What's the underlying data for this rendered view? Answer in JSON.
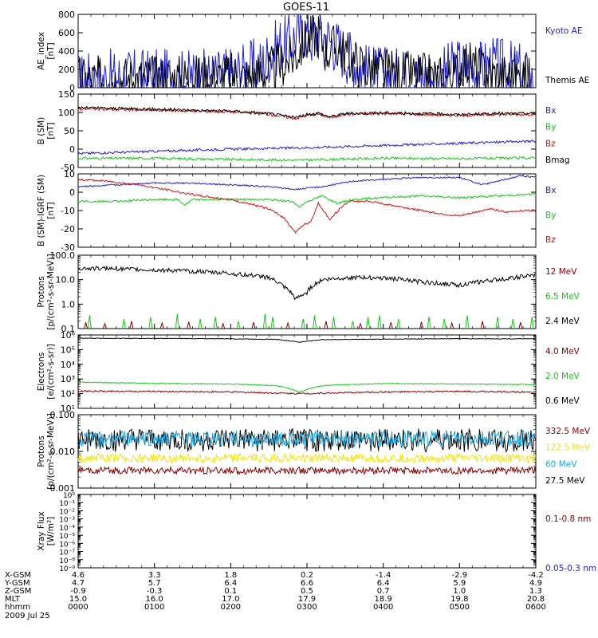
{
  "title": "GOES-11",
  "colors": {
    "black": "#000000",
    "blue": "#1f1fe0",
    "red": "#dd1111",
    "green": "#11cc11",
    "darkred": "#8a0000",
    "yellow": "#f2e600",
    "cyan": "#1aa7e0"
  },
  "chart_data": [
    {
      "type": "line",
      "panel": "ae",
      "ylabel": "AE_index [nT]",
      "yscale": "linear",
      "ylim": [
        0,
        800
      ],
      "yticks": [
        "0",
        "200",
        "400",
        "600",
        "800"
      ],
      "legend": [
        {
          "text": "Kyoto AE",
          "color": "blue"
        },
        {
          "text": "Themis AE",
          "color": "black"
        }
      ],
      "series": [
        {
          "name": "Kyoto AE",
          "color": "blue",
          "noise": 12,
          "x": [
            0,
            0.1,
            0.3,
            0.6,
            0.9,
            1.2,
            1.4,
            1.6,
            1.8,
            2.0,
            2.2,
            2.4,
            2.55,
            2.65,
            2.75,
            2.85,
            2.95,
            3.05,
            3.1,
            3.2,
            3.3,
            3.5,
            3.8,
            4.2,
            4.5,
            4.7,
            4.85,
            5.0,
            5.2,
            5.4,
            5.6,
            5.8,
            5.95,
            6.0
          ],
          "y": [
            70,
            90,
            110,
            110,
            120,
            110,
            110,
            120,
            120,
            150,
            200,
            250,
            400,
            480,
            480,
            560,
            620,
            540,
            560,
            600,
            520,
            380,
            160,
            130,
            110,
            120,
            180,
            250,
            180,
            250,
            220,
            180,
            60,
            40
          ]
        },
        {
          "name": "Themis AE",
          "color": "black",
          "noise": 10,
          "x": [
            0,
            0.3,
            0.6,
            0.9,
            1.2,
            1.5,
            1.8,
            2.0,
            2.2,
            2.4,
            2.6,
            2.75,
            2.85,
            2.95,
            3.05,
            3.15,
            3.25,
            3.4,
            3.6,
            3.8,
            4.2,
            4.5,
            4.8,
            4.95,
            5.05,
            5.2,
            5.4,
            5.6,
            5.8,
            6.0
          ],
          "y": [
            80,
            90,
            100,
            100,
            100,
            110,
            100,
            130,
            110,
            140,
            220,
            300,
            350,
            500,
            550,
            600,
            400,
            450,
            300,
            200,
            150,
            120,
            100,
            150,
            280,
            230,
            150,
            130,
            110,
            90
          ]
        }
      ]
    },
    {
      "type": "line",
      "panel": "b",
      "ylabel": "B (SM) [nT]",
      "yscale": "linear",
      "ylim": [
        -50,
        150
      ],
      "yticks": [
        "-50",
        "0",
        "50",
        "100",
        "150"
      ],
      "legend": [
        {
          "text": "Bx",
          "color": "blue"
        },
        {
          "text": "By",
          "color": "green"
        },
        {
          "text": "Bz",
          "color": "red"
        },
        {
          "text": "Bmag",
          "color": "black"
        }
      ],
      "series": [
        {
          "name": "Bx",
          "color": "blue",
          "noise": 0.5,
          "x": [
            0,
            1,
            2,
            3,
            4,
            5,
            6
          ],
          "y": [
            -12,
            -6,
            0,
            4,
            10,
            16,
            22
          ]
        },
        {
          "name": "By",
          "color": "green",
          "noise": 0.5,
          "x": [
            0,
            1,
            2,
            2.9,
            3.5,
            4,
            5,
            6
          ],
          "y": [
            -25,
            -25,
            -28,
            -30,
            -27,
            -25,
            -26,
            -24
          ]
        },
        {
          "name": "Bz",
          "color": "red",
          "noise": 0.6,
          "x": [
            0,
            0.5,
            1,
            1.5,
            2,
            2.5,
            2.85,
            3.0,
            3.15,
            3.3,
            3.5,
            4,
            4.5,
            5,
            5.5,
            6
          ],
          "y": [
            110,
            108,
            106,
            104,
            102,
            95,
            84,
            92,
            96,
            86,
            95,
            97,
            95,
            92,
            95,
            95
          ]
        },
        {
          "name": "Bmag",
          "color": "black",
          "noise": 0.6,
          "x": [
            0,
            0.5,
            1,
            1.5,
            2,
            2.5,
            2.85,
            3.0,
            3.15,
            3.3,
            3.5,
            4,
            4.5,
            5,
            5.5,
            6
          ],
          "y": [
            113,
            111,
            109,
            106,
            104,
            97,
            86,
            94,
            98,
            88,
            97,
            99,
            97,
            94,
            97,
            97
          ]
        }
      ]
    },
    {
      "type": "line",
      "panel": "db",
      "ylabel": "B (SM)-IGRF (SM) [nT]",
      "yscale": "linear",
      "ylim": [
        -30,
        10
      ],
      "yticks": [
        "-30",
        "-20",
        "-10",
        "0",
        "10"
      ],
      "legend": [
        {
          "text": "Bx",
          "color": "blue"
        },
        {
          "text": "By",
          "color": "green"
        },
        {
          "text": "Bz",
          "color": "red"
        }
      ],
      "series": [
        {
          "name": "Bx",
          "color": "blue",
          "noise": 0.3,
          "x": [
            0,
            0.5,
            1,
            1.5,
            2,
            2.5,
            2.85,
            3.2,
            3.6,
            4,
            4.5,
            5,
            5.3,
            5.5,
            5.8,
            6
          ],
          "y": [
            3,
            4,
            5,
            5,
            4,
            3,
            1.5,
            3,
            6,
            7,
            8,
            8,
            4,
            6,
            9,
            8
          ]
        },
        {
          "name": "By",
          "color": "green",
          "noise": 0.4,
          "x": [
            0,
            0.5,
            1,
            1.3,
            1.4,
            1.5,
            2,
            2.5,
            2.8,
            2.9,
            3.0,
            3.2,
            3.4,
            3.6,
            4,
            4.5,
            5,
            5.5,
            6
          ],
          "y": [
            -5,
            -5,
            -4,
            -4,
            -7,
            -4,
            -4,
            -4,
            -5,
            -8,
            -5,
            -2,
            -6,
            -4,
            -3,
            -2,
            -3,
            -2,
            -1
          ]
        },
        {
          "name": "Bz",
          "color": "red",
          "noise": 0.4,
          "x": [
            0,
            0.4,
            0.8,
            1.2,
            1.6,
            2.0,
            2.3,
            2.5,
            2.7,
            2.85,
            2.95,
            3.05,
            3.15,
            3.3,
            3.45,
            3.55,
            3.8,
            4.1,
            4.5,
            4.8,
            5.0,
            5.2,
            5.4,
            5.6,
            5.8,
            6.0
          ],
          "y": [
            7,
            6,
            4,
            1,
            -2,
            -4,
            -7,
            -9,
            -14,
            -22,
            -18,
            -16,
            -6,
            -15,
            -8,
            -5,
            -5,
            -7,
            -10,
            -12,
            -13,
            -11,
            -9,
            -11,
            -10,
            -10
          ]
        }
      ]
    },
    {
      "type": "line",
      "panel": "p1",
      "ylabel": "Protons [p/(cm²-s-sr-MeV)]",
      "yscale": "log",
      "ylim": [
        0.1,
        100
      ],
      "yticks": [
        "0.1",
        "1.0",
        "10.0",
        "100.0"
      ],
      "legend": [
        {
          "text": "12 MeV",
          "color": "darkred"
        },
        {
          "text": "6.5 MeV",
          "color": "green"
        },
        {
          "text": "2.4 MeV",
          "color": "black"
        }
      ],
      "series": [
        {
          "name": "2.4 MeV",
          "color": "black",
          "noise": 0.09,
          "x": [
            0,
            0.5,
            1,
            1.5,
            2,
            2.5,
            2.7,
            2.85,
            3.0,
            3.2,
            3.5,
            4,
            4.5,
            5,
            5.5,
            6
          ],
          "y": [
            30,
            28,
            25,
            22,
            18,
            12,
            5,
            1.5,
            3,
            10,
            12,
            12,
            8,
            6,
            10,
            15
          ]
        },
        {
          "name": "6.5 MeV",
          "color": "green",
          "type": "spikes",
          "x": [
            0.15,
            0.6,
            0.95,
            1.3,
            1.6,
            1.8,
            2.1,
            2.45,
            2.55,
            2.95,
            3.1,
            3.35,
            3.6,
            3.8,
            3.95,
            4.2,
            4.6,
            4.8,
            5.1,
            5.5,
            5.7,
            5.95
          ],
          "y": [
            0.35,
            0.25,
            0.3,
            0.4,
            0.25,
            0.3,
            0.2,
            0.4,
            0.3,
            0.25,
            0.35,
            0.3,
            0.2,
            0.3,
            0.35,
            0.25,
            0.3,
            0.25,
            0.35,
            0.3,
            0.25,
            0.3
          ]
        },
        {
          "name": "12 MeV",
          "color": "darkred",
          "type": "spikes",
          "x": [
            0.1,
            0.35,
            0.7,
            1.1,
            1.45,
            1.9,
            2.3,
            2.75,
            3.25,
            3.7,
            4.1,
            4.5,
            4.9,
            5.3,
            5.8
          ],
          "y": [
            0.18,
            0.16,
            0.2,
            0.17,
            0.19,
            0.16,
            0.18,
            0.17,
            0.2,
            0.16,
            0.18,
            0.19,
            0.17,
            0.2,
            0.18
          ]
        }
      ]
    },
    {
      "type": "line",
      "panel": "e",
      "ylabel": "Electrons [e/(cm²-s-sr)]",
      "yscale": "log",
      "ylim": [
        10,
        1000000
      ],
      "yticks": [
        "10¹",
        "10²",
        "10³",
        "10⁴",
        "10⁵",
        "10⁶"
      ],
      "legend": [
        {
          "text": "4.0 MeV",
          "color": "darkred"
        },
        {
          "text": "2.0 MeV",
          "color": "green"
        },
        {
          "text": "0.6 MeV",
          "color": "black"
        }
      ],
      "series": [
        {
          "name": "0.6 MeV",
          "color": "black",
          "noise": 0.02,
          "x": [
            0,
            1,
            2,
            2.6,
            2.9,
            3.2,
            4,
            5,
            6
          ],
          "y": [
            600000,
            580000,
            550000,
            500000,
            320000,
            480000,
            520000,
            560000,
            540000
          ]
        },
        {
          "name": "2.0 MeV",
          "color": "green",
          "noise": 0.03,
          "x": [
            0,
            1,
            2,
            2.6,
            2.9,
            3.2,
            4,
            5,
            6
          ],
          "y": [
            600,
            500,
            450,
            350,
            120,
            350,
            500,
            450,
            420
          ]
        },
        {
          "name": "4.0 MeV",
          "color": "darkred",
          "noise": 0.05,
          "x": [
            0,
            1,
            2,
            2.9,
            4,
            5,
            6
          ],
          "y": [
            150,
            140,
            130,
            100,
            130,
            140,
            130
          ]
        }
      ]
    },
    {
      "type": "line",
      "panel": "p2",
      "ylabel": "Protons [p/(cm²-s-sr-MeV)]",
      "yscale": "log",
      "ylim": [
        0.001,
        0.1
      ],
      "yticks": [
        "0.001",
        "0.010",
        "0.100"
      ],
      "legend": [
        {
          "text": "332.5 MeV",
          "color": "darkred"
        },
        {
          "text": "122.5 MeV",
          "color": "yellow"
        },
        {
          "text": "60 MeV",
          "color": "cyan"
        },
        {
          "text": "27.5 MeV",
          "color": "black"
        }
      ],
      "series": [
        {
          "name": "27.5 MeV",
          "color": "black",
          "noise": 0.32,
          "x": [
            0,
            6
          ],
          "y": [
            0.02,
            0.02
          ]
        },
        {
          "name": "60 MeV",
          "color": "cyan",
          "noise": 0.22,
          "x": [
            0,
            6
          ],
          "y": [
            0.022,
            0.022
          ]
        },
        {
          "name": "122.5 MeV",
          "color": "yellow",
          "noise": 0.12,
          "x": [
            0,
            6
          ],
          "y": [
            0.0065,
            0.0065
          ]
        },
        {
          "name": "332.5 MeV",
          "color": "darkred",
          "noise": 0.1,
          "x": [
            0,
            6
          ],
          "y": [
            0.003,
            0.003
          ]
        }
      ]
    },
    {
      "type": "line",
      "panel": "x",
      "ylabel": "Xray Flux [W/m²]",
      "yscale": "log",
      "ylim": [
        1e-09,
        1
      ],
      "yticks": [
        "10⁻⁹",
        "10⁻⁸",
        "10⁻⁷",
        "10⁻⁶",
        "10⁻⁵",
        "10⁻⁴",
        "10⁻³",
        "10⁻²",
        "10⁻¹",
        "10⁰"
      ],
      "legend": [
        {
          "text": "0.1-0.8 nm",
          "color": "darkred"
        },
        {
          "text": "0.05-0.3 nm",
          "color": "blue"
        }
      ],
      "series": []
    }
  ],
  "ephemeris": {
    "labels": [
      "X-GSM",
      "Y-GSM",
      "Z-GSM",
      "MLT",
      "hhmm"
    ],
    "columns": [
      [
        "4.6",
        "4.7",
        "-0.9",
        "15.0",
        "0000"
      ],
      [
        "3.3",
        "5.7",
        "-0.3",
        "16.0",
        "0100"
      ],
      [
        "1.8",
        "6.4",
        "0.1",
        "17.0",
        "0200"
      ],
      [
        "0.2",
        "6.6",
        "0.5",
        "17.9",
        "0300"
      ],
      [
        "-1.4",
        "6.4",
        "0.7",
        "18.9",
        "0400"
      ],
      [
        "-2.9",
        "5.9",
        "1.0",
        "19.8",
        "0500"
      ],
      [
        "-4.2",
        "4.9",
        "1.3",
        "20.8",
        "0600"
      ]
    ],
    "date": "2009 Jul 25"
  }
}
